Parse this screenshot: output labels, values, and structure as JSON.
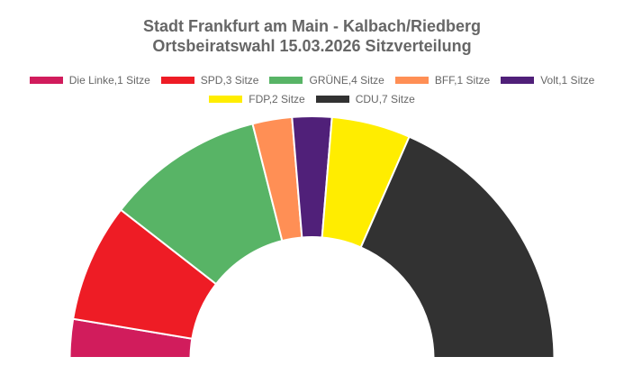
{
  "title": {
    "line1": "Stadt Frankfurt am Main - Kalbach/Riedberg",
    "line2": "Ortsbeiratswahl 15.03.2026 Sitzverteilung"
  },
  "legend": {
    "row1": [
      {
        "label": "Die Linke,1 Sitze",
        "color": "#d11c5c"
      },
      {
        "label": "SPD,3 Sitze",
        "color": "#ee1c25"
      },
      {
        "label": "GRÜNE,4 Sitze",
        "color": "#58b466"
      },
      {
        "label": "BFF,1 Sitze",
        "color": "#ff8f55"
      },
      {
        "label": "Volt,1 Sitze",
        "color": "#502079"
      }
    ],
    "row2": [
      {
        "label": "FDP,2 Sitze",
        "color": "#ffed00"
      },
      {
        "label": "CDU,7 Sitze",
        "color": "#323232"
      }
    ]
  },
  "chart_data": {
    "type": "pie",
    "subtype": "half-donut (parliament seat distribution)",
    "title": "Stadt Frankfurt am Main - Kalbach/Riedberg Ortsbeiratswahl 15.03.2026 Sitzverteilung",
    "categories": [
      "Die Linke",
      "SPD",
      "GRÜNE",
      "BFF",
      "Volt",
      "FDP",
      "CDU"
    ],
    "values": [
      1,
      3,
      4,
      1,
      1,
      2,
      7
    ],
    "colors": [
      "#d11c5c",
      "#ee1c25",
      "#58b466",
      "#ff8f55",
      "#502079",
      "#ffed00",
      "#323232"
    ],
    "total_seats": 19,
    "legend_position": "top",
    "unit": "Sitze"
  }
}
